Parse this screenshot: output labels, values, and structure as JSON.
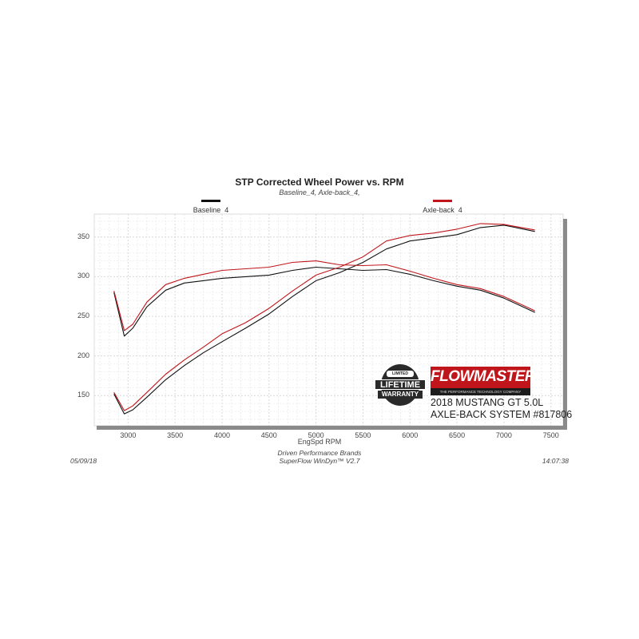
{
  "chart_data": {
    "type": "line",
    "title": "STP Corrected Wheel Power vs. RPM",
    "subtitle": "Baseline_4, Axle-back_4,",
    "xlabel": "EngSpd  RPM",
    "ylabel": "",
    "xlim": [
      2640,
      7630
    ],
    "ylim": [
      112,
      379
    ],
    "xticks": [
      3000,
      3500,
      4000,
      4500,
      5000,
      5500,
      6000,
      6500,
      7000,
      7500
    ],
    "yticks": [
      150,
      200,
      250,
      300,
      350
    ],
    "grid": true,
    "legend_placement": "top",
    "series": [
      {
        "name": "Baseline_4",
        "color": "#111111",
        "curve": "upper",
        "x": [
          2850,
          2960,
          3050,
          3200,
          3400,
          3600,
          3800,
          4000,
          4250,
          4500,
          4750,
          5000,
          5250,
          5500,
          5750,
          6000,
          6250,
          6500,
          6750,
          7000,
          7330
        ],
        "y": [
          280,
          225,
          235,
          262,
          283,
          292,
          295,
          298,
          300,
          302,
          308,
          312,
          310,
          308,
          309,
          303,
          295,
          288,
          283,
          273,
          255
        ]
      },
      {
        "name": "Baseline_4",
        "color": "#111111",
        "curve": "lower",
        "x": [
          2850,
          2960,
          3050,
          3200,
          3400,
          3600,
          3800,
          4000,
          4250,
          4500,
          4750,
          5000,
          5250,
          5500,
          5750,
          6000,
          6250,
          6500,
          6750,
          7000,
          7330
        ],
        "y": [
          152,
          127,
          132,
          148,
          170,
          188,
          204,
          218,
          235,
          253,
          275,
          295,
          305,
          318,
          335,
          345,
          349,
          353,
          362,
          365,
          357
        ]
      },
      {
        "name": "Axle-back_4",
        "color": "#c0161b",
        "curve": "upper",
        "x": [
          2850,
          2960,
          3050,
          3200,
          3400,
          3600,
          3800,
          4000,
          4250,
          4500,
          4750,
          5000,
          5250,
          5500,
          5750,
          6000,
          6250,
          6500,
          6750,
          7000,
          7330
        ],
        "y": [
          282,
          232,
          240,
          268,
          290,
          298,
          303,
          308,
          310,
          312,
          318,
          320,
          315,
          314,
          315,
          307,
          298,
          290,
          285,
          275,
          257
        ]
      },
      {
        "name": "Axle-back_4",
        "color": "#c0161b",
        "curve": "lower",
        "x": [
          2850,
          2960,
          3050,
          3200,
          3400,
          3600,
          3800,
          4000,
          4250,
          4500,
          4750,
          5000,
          5250,
          5500,
          5750,
          6000,
          6250,
          6500,
          6750,
          7000,
          7330
        ],
        "y": [
          154,
          131,
          137,
          154,
          177,
          195,
          211,
          228,
          242,
          260,
          282,
          302,
          312,
          325,
          345,
          352,
          355,
          360,
          367,
          366,
          359
        ]
      }
    ],
    "legend": [
      {
        "label": "Baseline_4",
        "color": "#111111"
      },
      {
        "label": "Axle-back_4",
        "color": "#c0161b"
      }
    ]
  },
  "footer": {
    "date": "05/09/18",
    "time": "14:07:38",
    "company": "Driven Performance Brands",
    "software": "SuperFlow WinDyn™  V2.7"
  },
  "logos": {
    "warranty": "STAINLESS STEEL LIMITED LIFETIME WARRANTY",
    "warranty_line1": "LIFETIME",
    "warranty_line2": "WARRANTY",
    "warranty_top": "LIMITED",
    "brand": "FLOWMASTER",
    "brand_tagline": "THE PERFORMANCE TECHNOLOGY COMPANY",
    "brand_color": "#c0161b"
  },
  "product": {
    "line1": "2018 MUSTANG GT 5.0L",
    "line2": "AXLE-BACK SYSTEM #817806"
  }
}
